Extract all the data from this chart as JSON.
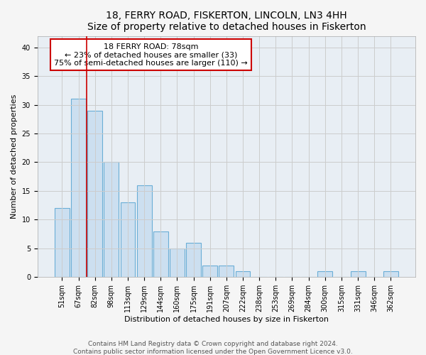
{
  "title": "18, FERRY ROAD, FISKERTON, LINCOLN, LN3 4HH",
  "subtitle": "Size of property relative to detached houses in Fiskerton",
  "xlabel": "Distribution of detached houses by size in Fiskerton",
  "ylabel": "Number of detached properties",
  "bar_labels": [
    "51sqm",
    "67sqm",
    "82sqm",
    "98sqm",
    "113sqm",
    "129sqm",
    "144sqm",
    "160sqm",
    "175sqm",
    "191sqm",
    "207sqm",
    "222sqm",
    "238sqm",
    "253sqm",
    "269sqm",
    "284sqm",
    "300sqm",
    "315sqm",
    "331sqm",
    "346sqm",
    "362sqm"
  ],
  "bar_values": [
    12,
    31,
    29,
    20,
    13,
    16,
    8,
    5,
    6,
    2,
    2,
    1,
    0,
    0,
    0,
    0,
    1,
    0,
    1,
    0,
    1
  ],
  "bar_color": "#ccdff0",
  "bar_edgecolor": "#6aaed6",
  "vline_x": 1.5,
  "vline_color": "#cc0000",
  "annotation_lines": [
    "18 FERRY ROAD: 78sqm",
    "← 23% of detached houses are smaller (33)",
    "75% of semi-detached houses are larger (110) →"
  ],
  "annotation_box_color": "#ffffff",
  "annotation_box_edgecolor": "#cc0000",
  "ylim": [
    0,
    42
  ],
  "yticks": [
    0,
    5,
    10,
    15,
    20,
    25,
    30,
    35,
    40
  ],
  "grid_color": "#cccccc",
  "bg_color": "#e8eef4",
  "fig_bg_color": "#f5f5f5",
  "footer_line1": "Contains HM Land Registry data © Crown copyright and database right 2024.",
  "footer_line2": "Contains public sector information licensed under the Open Government Licence v3.0.",
  "title_fontsize": 10,
  "label_fontsize": 8,
  "annotation_fontsize": 8,
  "footer_fontsize": 6.5,
  "tick_fontsize": 7
}
